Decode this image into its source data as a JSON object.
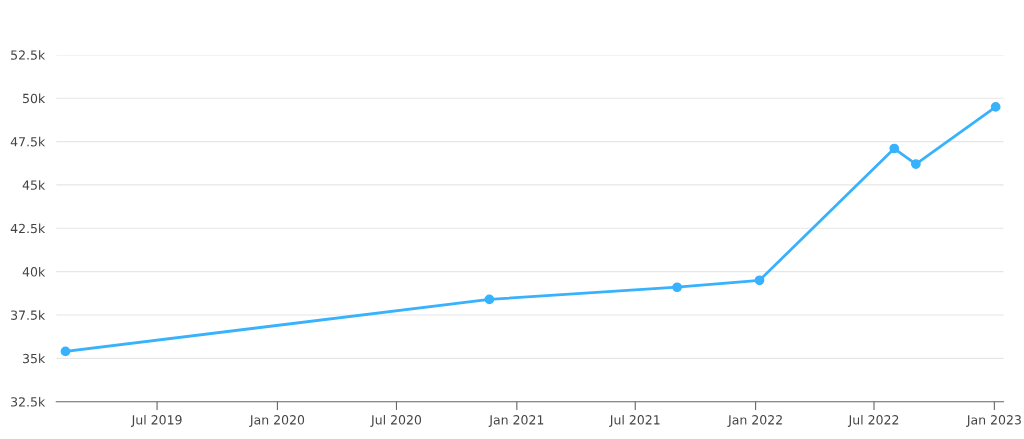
{
  "chart_data": {
    "type": "line",
    "x": [
      "2019-02-11",
      "2020-11-20",
      "2021-09-03",
      "2022-01-07",
      "2022-08-01",
      "2022-09-03",
      "2023-01-03"
    ],
    "series": [
      {
        "color": "#38b2fc",
        "values": [
          35400,
          38400,
          39100,
          39500,
          47100,
          46200,
          49500
        ]
      }
    ],
    "xlim": [
      "2019-01-28",
      "2023-01-15"
    ],
    "xticks": [
      {
        "value": "2019-07-01",
        "label": "Jul 2019"
      },
      {
        "value": "2020-01-01",
        "label": "Jan 2020"
      },
      {
        "value": "2020-07-01",
        "label": "Jul 2020"
      },
      {
        "value": "2021-01-01",
        "label": "Jan 2021"
      },
      {
        "value": "2021-07-01",
        "label": "Jul 2021"
      },
      {
        "value": "2022-01-01",
        "label": "Jan 2022"
      },
      {
        "value": "2022-07-01",
        "label": "Jul 2022"
      },
      {
        "value": "2023-01-01",
        "label": "Jan 2023"
      }
    ],
    "ylim": [
      32500,
      52500
    ],
    "yticks": [
      {
        "value": 32500,
        "label": "32.5k"
      },
      {
        "value": 35000,
        "label": "35k"
      },
      {
        "value": 37500,
        "label": "37.5k"
      },
      {
        "value": 40000,
        "label": "40k"
      },
      {
        "value": 42500,
        "label": "42.5k"
      },
      {
        "value": 45000,
        "label": "45k"
      },
      {
        "value": 47500,
        "label": "47.5k"
      },
      {
        "value": 50000,
        "label": "50k"
      },
      {
        "value": 52500,
        "label": "52.5k"
      }
    ],
    "grid": "y",
    "marker": "circle",
    "line_style": "solid"
  }
}
